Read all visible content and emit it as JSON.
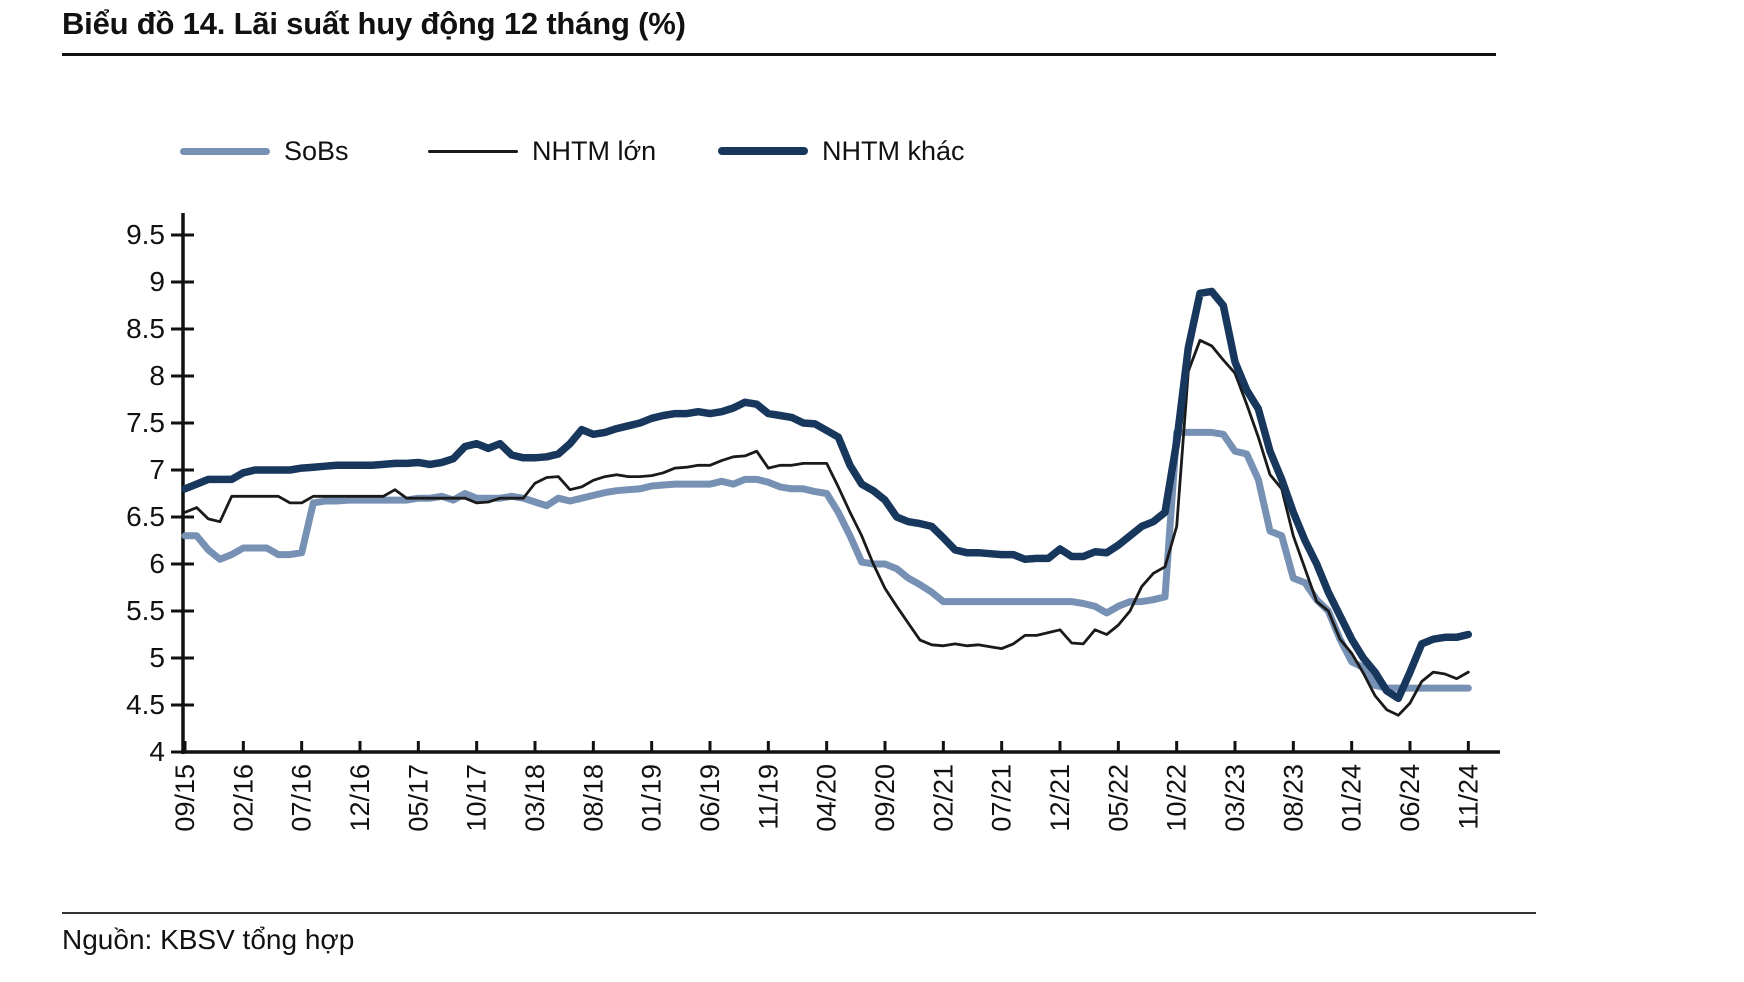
{
  "title": "Biểu đồ 14. Lãi suất huy động 12 tháng (%)",
  "source": "Nguồn: KBSV tổng hợp",
  "chart_data": {
    "type": "line",
    "title": "Biểu đồ 14. Lãi suất huy động 12 tháng (%)",
    "xlabel": "",
    "ylabel": "",
    "x_frequency": "monthly",
    "x_start": "09/15",
    "x_end": "11/24",
    "x_tick_labels": [
      "09/15",
      "02/16",
      "07/16",
      "12/16",
      "05/17",
      "10/17",
      "03/18",
      "08/18",
      "01/19",
      "06/19",
      "11/19",
      "04/20",
      "09/20",
      "02/21",
      "07/21",
      "12/21",
      "05/22",
      "10/22",
      "03/23",
      "08/23",
      "01/24",
      "06/24",
      "11/24"
    ],
    "x_tick_every_n_months": 5,
    "ylim": [
      4,
      9.5
    ],
    "y_tick_step": 0.5,
    "y_tick_labels": [
      "9.5",
      "9",
      "8.5",
      "8",
      "7.5",
      "7",
      "6.5",
      "6",
      "5.5",
      "5",
      "4.5",
      "4"
    ],
    "grid": false,
    "legend_position": "top",
    "axis_color": "#111111",
    "series": [
      {
        "name": "SoBs",
        "color": "#7791B4",
        "stroke_width": 7,
        "values": [
          6.3,
          6.3,
          6.15,
          6.05,
          6.1,
          6.17,
          6.17,
          6.17,
          6.1,
          6.1,
          6.12,
          6.65,
          6.67,
          6.67,
          6.68,
          6.68,
          6.68,
          6.68,
          6.68,
          6.68,
          6.7,
          6.7,
          6.72,
          6.68,
          6.75,
          6.7,
          6.7,
          6.7,
          6.72,
          6.7,
          6.66,
          6.62,
          6.7,
          6.67,
          6.7,
          6.73,
          6.76,
          6.78,
          6.79,
          6.8,
          6.83,
          6.84,
          6.85,
          6.85,
          6.85,
          6.85,
          6.88,
          6.85,
          6.9,
          6.9,
          6.87,
          6.82,
          6.8,
          6.8,
          6.77,
          6.75,
          6.55,
          6.3,
          6.02,
          6.0,
          6.0,
          5.95,
          5.85,
          5.78,
          5.7,
          5.6,
          5.6,
          5.6,
          5.6,
          5.6,
          5.6,
          5.6,
          5.6,
          5.6,
          5.6,
          5.6,
          5.6,
          5.58,
          5.55,
          5.48,
          5.55,
          5.6,
          5.6,
          5.62,
          5.65,
          7.4,
          7.4,
          7.4,
          7.4,
          7.38,
          7.2,
          7.17,
          6.9,
          6.35,
          6.3,
          5.85,
          5.8,
          5.62,
          5.5,
          5.2,
          4.96,
          4.9,
          4.71,
          4.68,
          4.68,
          4.68,
          4.68,
          4.68,
          4.68,
          4.68,
          4.68
        ]
      },
      {
        "name": "NHTM lớn",
        "color": "#1a1a1a",
        "stroke_width": 2.8,
        "values": [
          6.55,
          6.6,
          6.48,
          6.45,
          6.72,
          6.72,
          6.72,
          6.72,
          6.72,
          6.65,
          6.65,
          6.72,
          6.72,
          6.72,
          6.72,
          6.72,
          6.72,
          6.72,
          6.79,
          6.7,
          6.7,
          6.7,
          6.7,
          6.7,
          6.7,
          6.65,
          6.66,
          6.7,
          6.7,
          6.7,
          6.86,
          6.92,
          6.93,
          6.79,
          6.82,
          6.89,
          6.93,
          6.95,
          6.93,
          6.93,
          6.94,
          6.97,
          7.02,
          7.03,
          7.05,
          7.05,
          7.1,
          7.14,
          7.15,
          7.2,
          7.02,
          7.05,
          7.05,
          7.07,
          7.07,
          7.07,
          6.82,
          6.55,
          6.3,
          6.0,
          5.74,
          5.55,
          5.37,
          5.19,
          5.14,
          5.13,
          5.15,
          5.13,
          5.14,
          5.12,
          5.1,
          5.15,
          5.24,
          5.24,
          5.27,
          5.3,
          5.16,
          5.15,
          5.3,
          5.25,
          5.35,
          5.5,
          5.76,
          5.9,
          5.97,
          6.4,
          8.05,
          8.38,
          8.32,
          8.17,
          8.03,
          7.7,
          7.35,
          6.95,
          6.8,
          6.3,
          5.95,
          5.6,
          5.5,
          5.2,
          5.05,
          4.84,
          4.6,
          4.45,
          4.39,
          4.52,
          4.75,
          4.85,
          4.83,
          4.78,
          4.85
        ]
      },
      {
        "name": "NHTM khác",
        "color": "#17375D",
        "stroke_width": 7.5,
        "values": [
          6.8,
          6.85,
          6.9,
          6.9,
          6.9,
          6.97,
          7.0,
          7.0,
          7.0,
          7.0,
          7.02,
          7.03,
          7.04,
          7.05,
          7.05,
          7.05,
          7.05,
          7.06,
          7.07,
          7.07,
          7.08,
          7.06,
          7.08,
          7.12,
          7.25,
          7.28,
          7.23,
          7.28,
          7.16,
          7.13,
          7.13,
          7.14,
          7.17,
          7.28,
          7.43,
          7.38,
          7.4,
          7.44,
          7.47,
          7.5,
          7.55,
          7.58,
          7.6,
          7.6,
          7.62,
          7.6,
          7.62,
          7.66,
          7.72,
          7.7,
          7.6,
          7.58,
          7.56,
          7.5,
          7.49,
          7.42,
          7.35,
          7.05,
          6.85,
          6.78,
          6.68,
          6.5,
          6.45,
          6.43,
          6.4,
          6.28,
          6.15,
          6.12,
          6.12,
          6.11,
          6.1,
          6.1,
          6.05,
          6.06,
          6.06,
          6.16,
          6.08,
          6.08,
          6.13,
          6.12,
          6.2,
          6.3,
          6.4,
          6.45,
          6.55,
          7.3,
          8.3,
          8.88,
          8.9,
          8.75,
          8.15,
          7.85,
          7.65,
          7.2,
          6.9,
          6.55,
          6.25,
          6.0,
          5.7,
          5.45,
          5.2,
          5.0,
          4.85,
          4.65,
          4.57,
          4.85,
          5.15,
          5.2,
          5.22,
          5.22,
          5.25
        ]
      }
    ]
  }
}
